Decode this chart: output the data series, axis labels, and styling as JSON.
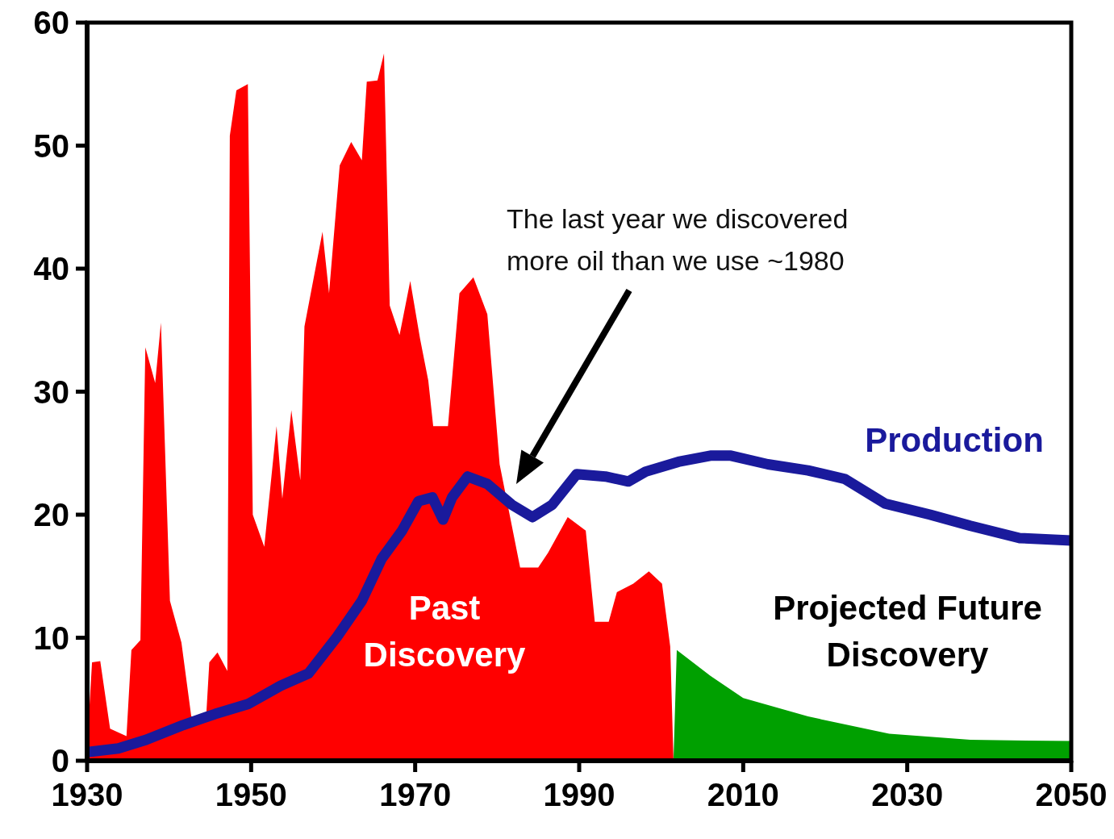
{
  "chart_data": {
    "type": "area",
    "xlim": [
      1930,
      2050
    ],
    "xticks": [
      1930,
      1950,
      1970,
      1990,
      2010,
      2030,
      2050
    ],
    "ylim": [
      0,
      60
    ],
    "yticks": [
      0,
      10,
      20,
      30,
      40,
      50,
      60
    ],
    "legend": false,
    "grid": false,
    "series": [
      {
        "name": "Past Discovery",
        "color": "#ff0000",
        "x": [
          1930,
          1930.6,
          1931.6,
          1932.8,
          1934.8,
          1935.4,
          1936.5,
          1937.1,
          1938.3,
          1939,
          1940.1,
          1941.5,
          1942.7,
          1944.5,
          1944.9,
          1945.9,
          1947.1,
          1947.4,
          1948.2,
          1949.6,
          1950.2,
          1951.6,
          1953.1,
          1953.8,
          1954.9,
          1956,
          1956.5,
          1958.7,
          1959.5,
          1960.8,
          1962.2,
          1963.5,
          1964.1,
          1965.4,
          1966.2,
          1966.9,
          1968.1,
          1969.4,
          1970.6,
          1971.6,
          1972.2,
          1974,
          1975.4,
          1977.1,
          1978.8,
          1980.3,
          1982.8,
          1985,
          1986.2,
          1988.6,
          1990.8,
          1991.9,
          1993.6,
          1994.6,
          1996.6,
          1998.5,
          2000.1,
          2001.1,
          2001.5
        ],
        "values": [
          1.2,
          8,
          8.1,
          2.6,
          2,
          9,
          9.8,
          33.6,
          30.7,
          35.6,
          13,
          9.6,
          3.6,
          3.4,
          8,
          8.8,
          7.3,
          50.8,
          54.5,
          55,
          20,
          17.4,
          27.2,
          21.3,
          28.5,
          22.8,
          35.3,
          43,
          38,
          48.4,
          50.3,
          48.8,
          55.2,
          55.3,
          57.5,
          37,
          34.6,
          39,
          34.3,
          30.9,
          27.2,
          27.2,
          38,
          39.3,
          36.3,
          24.1,
          15.7,
          15.7,
          16.9,
          19.8,
          18.7,
          11.3,
          11.3,
          13.7,
          14.4,
          15.4,
          14.4,
          9.3,
          0
        ]
      },
      {
        "name": "Projected Future Discovery",
        "color": "#00a000",
        "x": [
          2001.5,
          2001.9,
          2006,
          2010,
          2017.9,
          2027.8,
          2037.7,
          2050
        ],
        "values": [
          0,
          9,
          6.9,
          5.1,
          3.6,
          2.2,
          1.7,
          1.6
        ]
      },
      {
        "name": "Production",
        "type": "line",
        "color": "#1a1a9c",
        "x": [
          1930,
          1933.8,
          1937.2,
          1941.7,
          1945.6,
          1949.6,
          1953.6,
          1957,
          1960.5,
          1963.5,
          1965.9,
          1968.4,
          1970.4,
          1972.1,
          1973.4,
          1974.5,
          1976.4,
          1978.8,
          1981.8,
          1984.3,
          1986.7,
          1989.7,
          1993.2,
          1996,
          1998.1,
          2002.1,
          2006,
          2008.5,
          2013,
          2017.9,
          2022.4,
          2027.3,
          2032.8,
          2037.7,
          2043.7,
          2050
        ],
        "values": [
          0.7,
          1,
          1.7,
          2.9,
          3.8,
          4.6,
          6.1,
          7.1,
          10.1,
          13,
          16.4,
          18.7,
          21.1,
          21.4,
          19.6,
          21.4,
          23.1,
          22.5,
          20.8,
          19.8,
          20.8,
          23.3,
          23.1,
          22.7,
          23.5,
          24.3,
          24.8,
          24.8,
          24.1,
          23.6,
          22.9,
          20.9,
          20,
          19.1,
          18.1,
          17.9
        ]
      }
    ],
    "annotations": [
      "The last year we discovered more oil than we use ~1980"
    ]
  }
}
